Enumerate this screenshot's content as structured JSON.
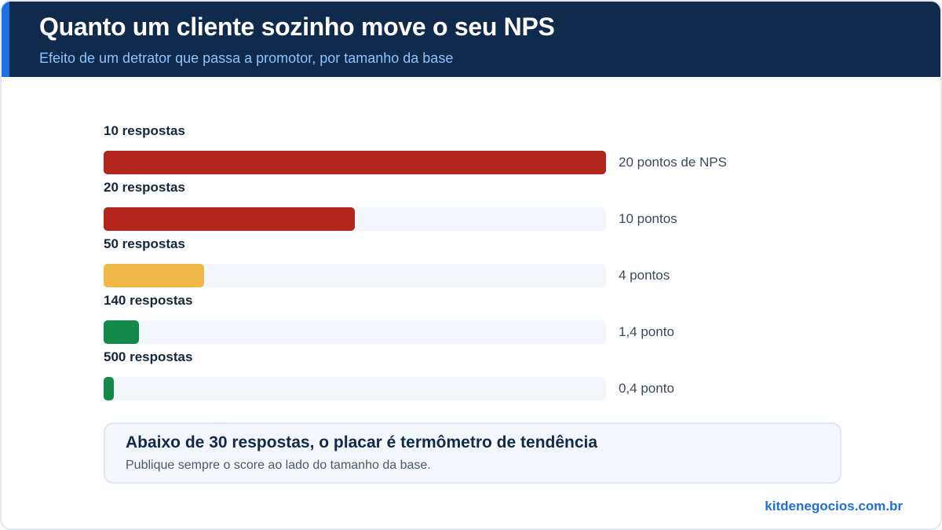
{
  "header": {
    "title": "Quanto um cliente sozinho move o seu NPS",
    "subtitle": "Efeito de um detrator que passa a promotor, por tamanho da base"
  },
  "chart_data": {
    "type": "bar",
    "orientation": "horizontal",
    "title": "Quanto um cliente sozinho move o seu NPS",
    "subtitle": "Efeito de um detrator que passa a promotor, por tamanho da base",
    "xlim": [
      0,
      20
    ],
    "grid": false,
    "categories": [
      "10 respostas",
      "20 respostas",
      "50 respostas",
      "140 respostas",
      "500 respostas"
    ],
    "values": [
      20,
      10,
      4,
      1.4,
      0.4
    ],
    "value_labels": [
      "20 pontos de NPS",
      "10 pontos",
      "4 pontos",
      "1,4 ponto",
      "0,4 ponto"
    ],
    "bar_colors": [
      "#b3261e",
      "#b3261e",
      "#f0b947",
      "#138a4a",
      "#138a4a"
    ]
  },
  "note": {
    "title": "Abaixo de 30 respostas, o placar é termômetro de tendência",
    "text": "Publique sempre o score ao lado do tamanho da base."
  },
  "brand": "kitdenegocios.com.br",
  "colors": {
    "header_bg": "#0f2a4a",
    "accent": "#1f6fe0",
    "subtitle": "#8cc4ff",
    "track": "#f3f6fb"
  }
}
